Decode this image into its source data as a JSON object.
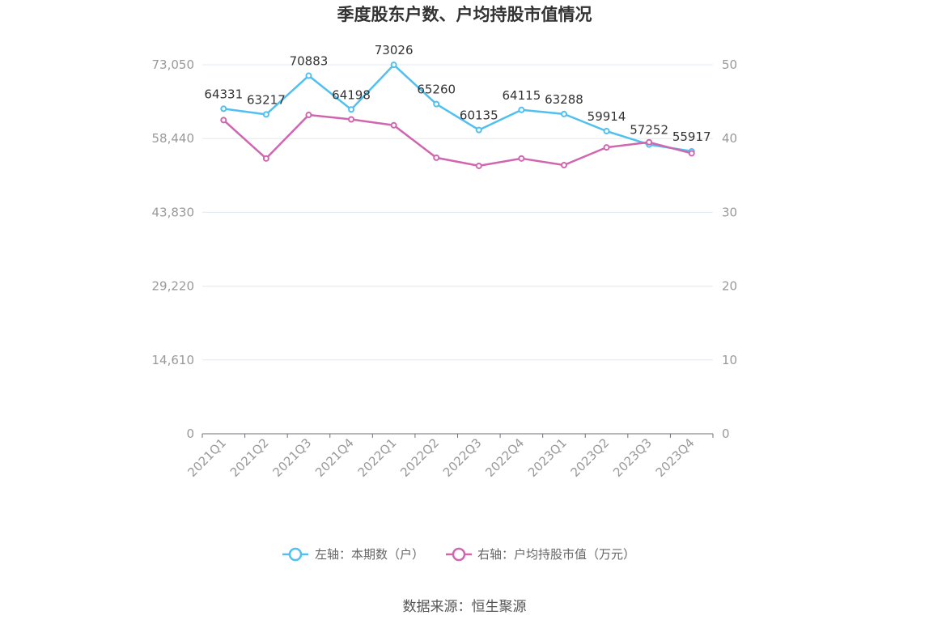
{
  "chart_data": {
    "type": "line",
    "title": "季度股东户数、户均持股市值情况",
    "categories": [
      "2021Q1",
      "2021Q2",
      "2021Q3",
      "2021Q4",
      "2022Q1",
      "2022Q2",
      "2022Q3",
      "2022Q4",
      "2023Q1",
      "2023Q2",
      "2023Q3",
      "2023Q4"
    ],
    "left_axis": {
      "ylim": [
        0,
        73050
      ],
      "ticks": [
        "0",
        "14,610",
        "29,220",
        "43,830",
        "58,440",
        "73,050"
      ],
      "tick_values": [
        0,
        14610,
        29220,
        43830,
        58440,
        73050
      ]
    },
    "right_axis": {
      "ylim": [
        0,
        50
      ],
      "ticks": [
        "0",
        "10",
        "20",
        "30",
        "40",
        "50"
      ],
      "tick_values": [
        0,
        10,
        20,
        30,
        40,
        50
      ]
    },
    "series": [
      {
        "name": "左轴：本期数（户）",
        "axis": "left",
        "color": "#4fc0ef",
        "values": [
          64331,
          63217,
          70883,
          64198,
          73026,
          65260,
          60135,
          64115,
          63288,
          59914,
          57252,
          55917
        ],
        "labels": [
          "64331",
          "63217",
          "70883",
          "64198",
          "73026",
          "65260",
          "60135",
          "64115",
          "63288",
          "59914",
          "57252",
          "55917"
        ]
      },
      {
        "name": "右轴：户均持股市值（万元）",
        "axis": "right",
        "color": "#d066b0",
        "values": [
          42.5,
          37.3,
          43.2,
          42.6,
          41.8,
          37.4,
          36.3,
          37.3,
          36.4,
          38.8,
          39.5,
          38.0
        ]
      }
    ],
    "grid": true,
    "legend_position": "bottom"
  },
  "source": "数据来源：恒生聚源"
}
